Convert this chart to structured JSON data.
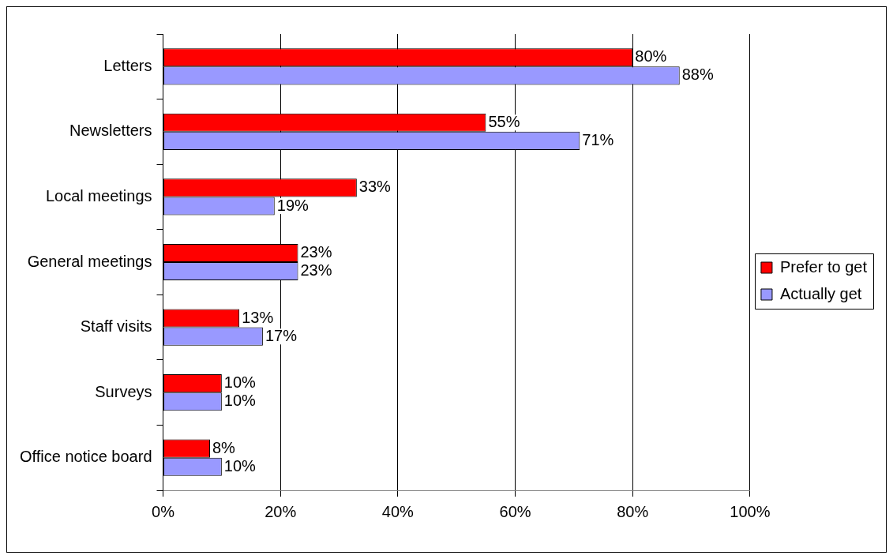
{
  "chart_data": {
    "type": "bar",
    "orientation": "horizontal",
    "categories": [
      "Letters",
      "Newsletters",
      "Local meetings",
      "General meetings",
      "Staff visits",
      "Surveys",
      "Office notice board"
    ],
    "series": [
      {
        "name": "Prefer to get",
        "color": "#ff0000",
        "values": [
          80,
          55,
          33,
          23,
          13,
          10,
          8
        ],
        "value_labels": [
          "80%",
          "55%",
          "33%",
          "23%",
          "13%",
          "10%",
          "8%"
        ]
      },
      {
        "name": "Actually get",
        "color": "#9999ff",
        "values": [
          88,
          71,
          19,
          23,
          17,
          10,
          10
        ],
        "value_labels": [
          "88%",
          "71%",
          "19%",
          "23%",
          "17%",
          "10%",
          "10%"
        ]
      }
    ],
    "xlim": [
      0,
      100
    ],
    "xticks": [
      {
        "value": 0,
        "label": "0%"
      },
      {
        "value": 20,
        "label": "20%"
      },
      {
        "value": 40,
        "label": "40%"
      },
      {
        "value": 60,
        "label": "60%"
      },
      {
        "value": 80,
        "label": "80%"
      },
      {
        "value": 100,
        "label": "100%"
      }
    ],
    "grid": "x",
    "legend": "right"
  }
}
